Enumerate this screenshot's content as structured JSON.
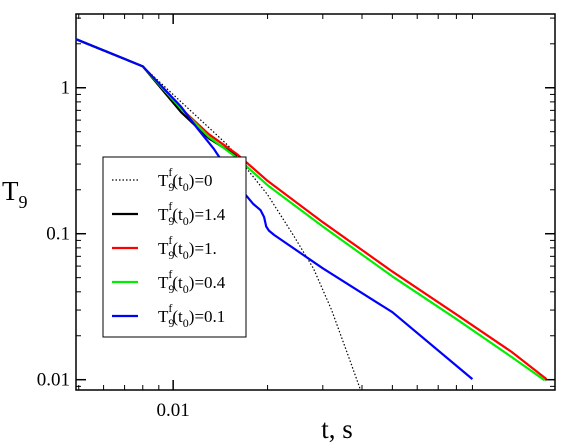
{
  "chart_data": {
    "type": "line",
    "xlabel": "t, s",
    "ylabel": "T",
    "ylabel_sub": "9",
    "xscale": "log",
    "yscale": "log",
    "xlim": [
      0.0049,
      0.165
    ],
    "ylim": [
      0.0085,
      3.2
    ],
    "x_ticks": [
      {
        "value": 0.01,
        "label": "0.01"
      }
    ],
    "y_ticks": [
      {
        "value": 1,
        "label": "1"
      },
      {
        "value": 0.1,
        "label": "0.1"
      },
      {
        "value": 0.01,
        "label": "0.01"
      }
    ],
    "grid": false,
    "legend_position": "center-left",
    "series": [
      {
        "name": "T9f(t0)=0",
        "label": {
          "p1": "T",
          "sub1": "9",
          "sup": "f",
          "p2": "(t",
          "sub2": "0",
          "p3": ")=0"
        },
        "color": "#000000",
        "style": "dotted",
        "x": [
          0.0049,
          0.008,
          0.0106,
          0.015,
          0.02,
          0.024,
          0.028,
          0.032,
          0.036,
          0.0395
        ],
        "y": [
          2.15,
          1.4,
          0.8,
          0.4,
          0.185,
          0.1,
          0.058,
          0.03,
          0.015,
          0.0086
        ]
      },
      {
        "name": "T9f(t0)=1.4",
        "label": {
          "p1": "T",
          "sub1": "9",
          "sup": "f",
          "p2": "(t",
          "sub2": "0",
          "p3": ")=1.4"
        },
        "color": "#000000",
        "style": "solid",
        "x": [
          0.0049,
          0.008,
          0.0106,
          0.013,
          0.016
        ],
        "y": [
          2.15,
          1.4,
          0.68,
          0.45,
          0.34
        ]
      },
      {
        "name": "T9f(t0)=1.",
        "label": {
          "p1": "T",
          "sub1": "9",
          "sup": "f",
          "p2": "(t",
          "sub2": "0",
          "p3": ")=1."
        },
        "color": "#ff0000",
        "style": "solid",
        "x": [
          0.0049,
          0.008,
          0.0106,
          0.013,
          0.016,
          0.02,
          0.03,
          0.05,
          0.08,
          0.12,
          0.155
        ],
        "y": [
          2.15,
          1.4,
          0.72,
          0.48,
          0.35,
          0.23,
          0.12,
          0.055,
          0.028,
          0.0155,
          0.0101
        ]
      },
      {
        "name": "T9f(t0)=0.4",
        "label": {
          "p1": "T",
          "sub1": "9",
          "sup": "f",
          "p2": "(t",
          "sub2": "0",
          "p3": ")=0.4"
        },
        "color": "#00ee00",
        "style": "solid",
        "x": [
          0.0049,
          0.008,
          0.0106,
          0.013,
          0.016,
          0.02,
          0.03,
          0.05,
          0.08,
          0.12,
          0.153
        ],
        "y": [
          2.15,
          1.4,
          0.72,
          0.46,
          0.33,
          0.215,
          0.112,
          0.051,
          0.026,
          0.0143,
          0.0099
        ]
      },
      {
        "name": "T9f(t0)=0.1",
        "label": {
          "p1": "T",
          "sub1": "9",
          "sup": "f",
          "p2": "(t",
          "sub2": "0",
          "p3": ")=0.1"
        },
        "color": "#0000ff",
        "style": "solid",
        "x": [
          0.0049,
          0.008,
          0.0106,
          0.012,
          0.0135,
          0.015,
          0.0165,
          0.018,
          0.019,
          0.0195,
          0.0198,
          0.0202,
          0.021,
          0.03,
          0.05,
          0.09
        ],
        "y": [
          2.15,
          1.4,
          0.74,
          0.52,
          0.38,
          0.27,
          0.2,
          0.16,
          0.145,
          0.13,
          0.112,
          0.105,
          0.098,
          0.058,
          0.029,
          0.0101
        ]
      }
    ]
  }
}
